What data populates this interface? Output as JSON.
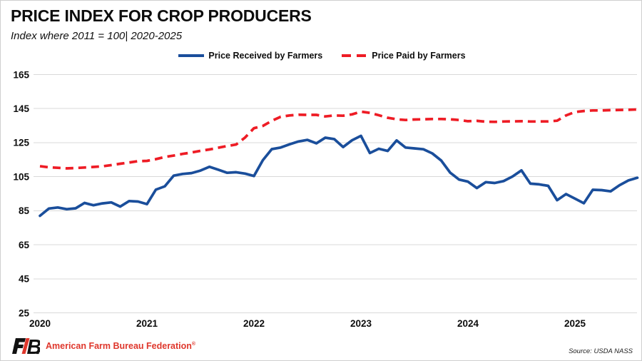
{
  "header": {
    "title": "PRICE INDEX FOR CROP PRODUCERS",
    "subtitle": "Index where 2011 = 100| 2020-2025"
  },
  "legend": [
    {
      "label": "Price Received by Farmers",
      "color": "#1a4e9b",
      "style": "solid"
    },
    {
      "label": "Price Paid by Farmers",
      "color": "#ee1c25",
      "style": "dashed"
    }
  ],
  "colors": {
    "received_line": "#1a4e9b",
    "paid_line": "#ee1c25",
    "gridline": "#d9d9d9",
    "tick_text": "#0d0d0d",
    "brand_red": "#df372c"
  },
  "chart_data": {
    "type": "line",
    "title": "PRICE INDEX FOR CROP PRODUCERS",
    "subtitle": "Index where 2011 = 100| 2020-2025",
    "x_unit": "month",
    "x_monthly_from": "2020-01",
    "x_monthly_to": "2025-08",
    "x_tick_labels": [
      "2020",
      "2021",
      "2022",
      "2023",
      "2024",
      "2025"
    ],
    "y_ticks": [
      25,
      45,
      65,
      85,
      105,
      125,
      145,
      165
    ],
    "ylim": [
      25,
      165
    ],
    "grid": "horizontal",
    "legend_position": "top",
    "series": [
      {
        "name": "Price Received by Farmers",
        "color": "#1a4e9b",
        "line_style": "solid",
        "values": [
          82,
          86.3,
          86.9,
          85.9,
          86.4,
          89.6,
          88.2,
          89.3,
          89.9,
          87.4,
          90.7,
          90.4,
          88.9,
          97.4,
          99.3,
          105.6,
          106.6,
          107.1,
          108.6,
          110.8,
          109.1,
          107.3,
          107.6,
          106.8,
          105.4,
          114.7,
          121.2,
          122.1,
          124,
          125.7,
          126.6,
          124.6,
          127.9,
          127.1,
          122.4,
          126.4,
          129,
          118.9,
          121.4,
          120.1,
          126.3,
          122.1,
          121.6,
          121.1,
          118.7,
          114.5,
          107.4,
          103.3,
          102.1,
          98.3,
          101.8,
          101.3,
          102.4,
          105.1,
          108.7,
          100.9,
          100.5,
          99.6,
          91.2,
          94.8,
          92.1,
          89.4,
          97.3,
          97.1,
          96.4,
          100,
          102.8,
          104.4
        ]
      },
      {
        "name": "Price Paid by Farmers",
        "color": "#ee1c25",
        "line_style": "dashed",
        "values": [
          111.2,
          110.5,
          110.2,
          109.9,
          110.1,
          110.4,
          110.7,
          111.1,
          111.8,
          112.6,
          113.3,
          114.1,
          114.3,
          115.3,
          116.6,
          117.4,
          118.4,
          119.2,
          120.2,
          121,
          122,
          123,
          123.9,
          128,
          133.5,
          134.8,
          137.8,
          140.2,
          141,
          141.4,
          141.3,
          141.3,
          140.4,
          141,
          140.8,
          141.6,
          143.2,
          142.5,
          141.1,
          139.6,
          138.7,
          138.3,
          138.6,
          138.7,
          138.9,
          138.9,
          138.7,
          138.3,
          137.6,
          137.8,
          137.3,
          137.2,
          137.4,
          137.5,
          137.6,
          137.4,
          137.4,
          137.5,
          137.9,
          141,
          143,
          143.6,
          143.9,
          143.9,
          144.1,
          144.2,
          144.3,
          144.5
        ]
      }
    ]
  },
  "footer": {
    "logo": "FB.",
    "brand": "American Farm Bureau Federation",
    "brand_mark": "®",
    "source": "Source: USDA NASS"
  }
}
